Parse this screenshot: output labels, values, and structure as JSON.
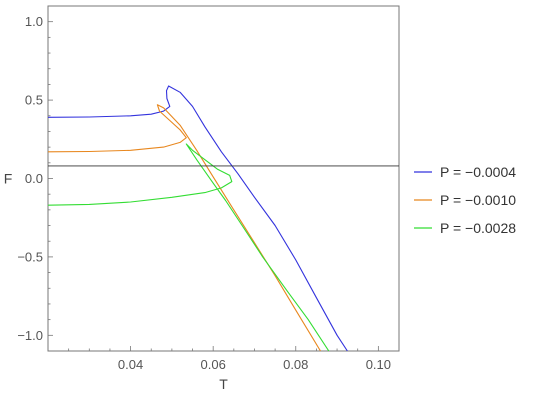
{
  "chart_data": {
    "type": "line",
    "title": "",
    "xlabel": "T",
    "ylabel": "F",
    "xlim": [
      0.02,
      0.105
    ],
    "ylim": [
      -1.1,
      1.1
    ],
    "xticks": [
      0.04,
      0.06,
      0.08,
      0.1
    ],
    "xtick_labels": [
      "0.04",
      "0.06",
      "0.08",
      "0.10"
    ],
    "yticks": [
      1.0,
      0.5,
      0.0,
      -0.5,
      -1.0
    ],
    "ytick_labels": [
      "1.0",
      "0.5",
      "0.0",
      "−0.5",
      "−1.0"
    ],
    "reference_line_y": 0.08,
    "grid": false,
    "legend_position": "right",
    "series": [
      {
        "name": "P = −0.0004",
        "color": "#3333dd",
        "points": [
          [
            0.02,
            0.39
          ],
          [
            0.03,
            0.392
          ],
          [
            0.04,
            0.4
          ],
          [
            0.045,
            0.41
          ],
          [
            0.048,
            0.43
          ],
          [
            0.0495,
            0.46
          ],
          [
            0.0488,
            0.51
          ],
          [
            0.0487,
            0.56
          ],
          [
            0.0492,
            0.59
          ],
          [
            0.052,
            0.55
          ],
          [
            0.055,
            0.46
          ],
          [
            0.058,
            0.33
          ],
          [
            0.062,
            0.17
          ],
          [
            0.066,
            0.03
          ],
          [
            0.07,
            -0.12
          ],
          [
            0.075,
            -0.3
          ],
          [
            0.08,
            -0.52
          ],
          [
            0.085,
            -0.76
          ],
          [
            0.09,
            -1.0
          ],
          [
            0.0925,
            -1.1
          ]
        ]
      },
      {
        "name": "P = −0.0010",
        "color": "#e8871e",
        "points": [
          [
            0.02,
            0.17
          ],
          [
            0.03,
            0.172
          ],
          [
            0.04,
            0.18
          ],
          [
            0.048,
            0.2
          ],
          [
            0.052,
            0.23
          ],
          [
            0.0535,
            0.26
          ],
          [
            0.052,
            0.31
          ],
          [
            0.0495,
            0.37
          ],
          [
            0.047,
            0.43
          ],
          [
            0.0465,
            0.47
          ],
          [
            0.048,
            0.45
          ],
          [
            0.052,
            0.34
          ],
          [
            0.056,
            0.18
          ],
          [
            0.06,
            0.01
          ],
          [
            0.065,
            -0.2
          ],
          [
            0.07,
            -0.41
          ],
          [
            0.075,
            -0.62
          ],
          [
            0.08,
            -0.84
          ],
          [
            0.086,
            -1.1
          ]
        ]
      },
      {
        "name": "P = −0.0028",
        "color": "#33dd33",
        "points": [
          [
            0.02,
            -0.17
          ],
          [
            0.03,
            -0.165
          ],
          [
            0.04,
            -0.15
          ],
          [
            0.05,
            -0.12
          ],
          [
            0.058,
            -0.09
          ],
          [
            0.062,
            -0.06
          ],
          [
            0.0645,
            -0.02
          ],
          [
            0.064,
            0.02
          ],
          [
            0.061,
            0.06
          ],
          [
            0.058,
            0.12
          ],
          [
            0.055,
            0.18
          ],
          [
            0.0535,
            0.22
          ],
          [
            0.056,
            0.12
          ],
          [
            0.06,
            -0.03
          ],
          [
            0.063,
            -0.14
          ],
          [
            0.067,
            -0.3
          ],
          [
            0.072,
            -0.5
          ],
          [
            0.078,
            -0.72
          ],
          [
            0.083,
            -0.9
          ],
          [
            0.088,
            -1.1
          ]
        ]
      }
    ]
  }
}
